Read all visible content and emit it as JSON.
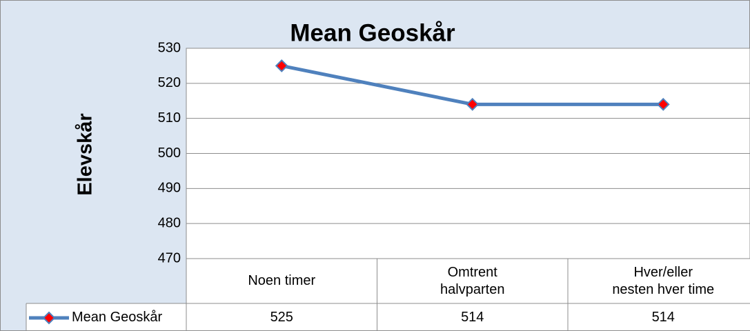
{
  "chart_data": {
    "type": "line",
    "title": "Mean Geoskår",
    "y_label": "Elevskår",
    "categories": [
      "Noen timer",
      "Omtrent\nhalvparten",
      "Hver/eller\nnesten hver time"
    ],
    "series": [
      {
        "name": "Mean Geoskår",
        "color": "#4f81bd",
        "marker_color": "#ff0000",
        "values": [
          525,
          514,
          514
        ]
      }
    ],
    "ylim": [
      470,
      530
    ],
    "yticks": [
      470,
      480,
      490,
      500,
      510,
      520,
      530
    ],
    "grid": true,
    "data_table": true
  }
}
